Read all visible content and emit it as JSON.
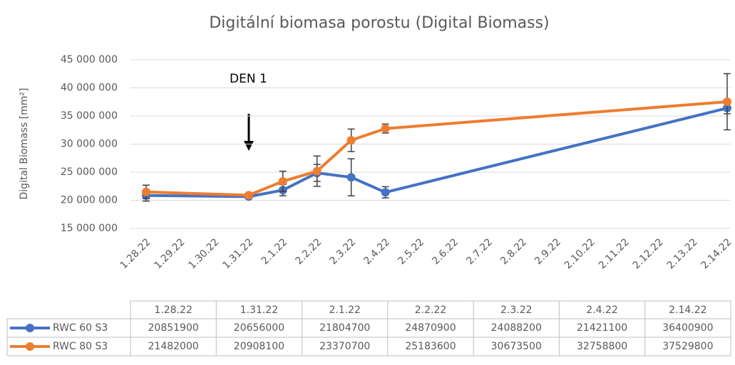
{
  "chart_data": {
    "type": "line",
    "title": "Digitální biomasa porostu (Digital Biomass)",
    "y_label": "Digital Biomass [mm²]",
    "annotation": "DEN 1",
    "categories": [
      "1.28.22",
      "1.29.22",
      "1.30.22",
      "1.31.22",
      "2.1.22",
      "2.2.22",
      "2.3.22",
      "2.4.22",
      "2.5.22",
      "2.6.22",
      "2.7.22",
      "2.8.22",
      "2.9.22",
      "2.10.22",
      "2.11.22",
      "2.12.22",
      "2.13.22",
      "2.14.22"
    ],
    "x": [
      "1.28.22",
      "1.31.22",
      "2.1.22",
      "2.2.22",
      "2.3.22",
      "2.4.22",
      "2.14.22"
    ],
    "series": [
      {
        "name": "RWC 60 S3",
        "color": "#4472c4",
        "values": [
          20851900,
          20656000,
          21804700,
          24870900,
          24088200,
          21421100,
          36400900
        ],
        "errors": [
          1000000,
          300000,
          1000000,
          1500000,
          3300000,
          1000000,
          1000000
        ]
      },
      {
        "name": "RWC 80 S3",
        "color": "#ed7d31",
        "values": [
          21482000,
          20908100,
          23370700,
          25183600,
          30673500,
          32758800,
          37529800
        ],
        "errors": [
          1200000,
          300000,
          1800000,
          2700000,
          2000000,
          800000,
          5000000
        ]
      }
    ],
    "ylim": [
      15000000,
      45000000
    ],
    "yticks": [
      {
        "value": 15000000,
        "label": "15 000 000"
      },
      {
        "value": 20000000,
        "label": "20 000 000"
      },
      {
        "value": 25000000,
        "label": "25 000 000"
      },
      {
        "value": 30000000,
        "label": "30 000 000"
      },
      {
        "value": 35000000,
        "label": "35 000 000"
      },
      {
        "value": 40000000,
        "label": "40 000 000"
      },
      {
        "value": 45000000,
        "label": "45 000 000"
      }
    ],
    "grid": true
  }
}
